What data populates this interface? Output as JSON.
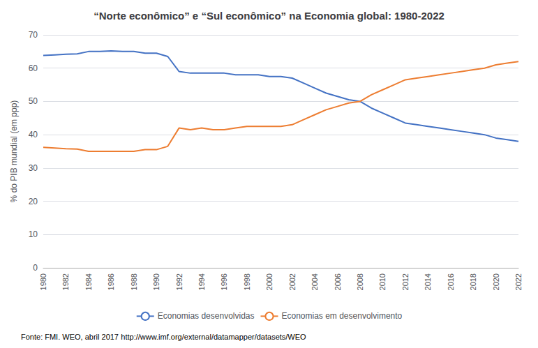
{
  "chart_data": {
    "type": "line",
    "title": "“Norte econômico” e “Sul econômico” na Economia global: 1980-2022",
    "ylabel": "% do PIB mundial (em ppp)",
    "annotations": [
      "Fonte: FMI. WEO, abril 2017",
      "http://www.imf.org/external/datamapper/datasets/WEO"
    ],
    "x": [
      1980,
      1981,
      1982,
      1983,
      1984,
      1985,
      1986,
      1987,
      1988,
      1989,
      1990,
      1991,
      1992,
      1993,
      1994,
      1995,
      1996,
      1997,
      1998,
      1999,
      2000,
      2001,
      2002,
      2003,
      2004,
      2005,
      2006,
      2007,
      2008,
      2009,
      2010,
      2011,
      2012,
      2013,
      2014,
      2015,
      2016,
      2017,
      2018,
      2019,
      2020,
      2021,
      2022
    ],
    "series": [
      {
        "name": "Economias desenvolvidas",
        "color": "#4472c4",
        "values": [
          63.8,
          64.0,
          64.2,
          64.3,
          65.0,
          65.0,
          65.2,
          65.0,
          65.0,
          64.5,
          64.5,
          63.5,
          59.0,
          58.5,
          58.5,
          58.5,
          58.5,
          58.0,
          58.0,
          58.0,
          57.5,
          57.5,
          57.0,
          55.5,
          54.0,
          52.5,
          51.5,
          50.5,
          50.0,
          48.0,
          46.5,
          45.0,
          43.5,
          43.0,
          42.5,
          42.0,
          41.5,
          41.0,
          40.5,
          40.0,
          39.0,
          38.5,
          38.0
        ]
      },
      {
        "name": "Economias em desenvolvimento",
        "color": "#ed7d31",
        "values": [
          36.2,
          36.0,
          35.8,
          35.7,
          35.0,
          35.0,
          35.0,
          35.0,
          35.0,
          35.5,
          35.5,
          36.5,
          42.0,
          41.5,
          42.0,
          41.5,
          41.5,
          42.0,
          42.5,
          42.5,
          42.5,
          42.5,
          43.0,
          44.5,
          46.0,
          47.5,
          48.5,
          49.5,
          50.0,
          52.0,
          53.5,
          55.0,
          56.5,
          57.0,
          57.5,
          58.0,
          58.5,
          59.0,
          59.5,
          60.0,
          61.0,
          61.5,
          62.0
        ]
      }
    ],
    "xlim": [
      1980,
      2022
    ],
    "xticks": [
      1980,
      1982,
      1984,
      1986,
      1988,
      1990,
      1992,
      1994,
      1996,
      1998,
      2000,
      2002,
      2004,
      2006,
      2008,
      2010,
      2012,
      2014,
      2016,
      2018,
      2020,
      2022
    ],
    "ylim": [
      0,
      70
    ],
    "yticks": [
      0,
      10,
      20,
      30,
      40,
      50,
      60,
      70
    ],
    "grid": true,
    "legend": "bottom"
  }
}
